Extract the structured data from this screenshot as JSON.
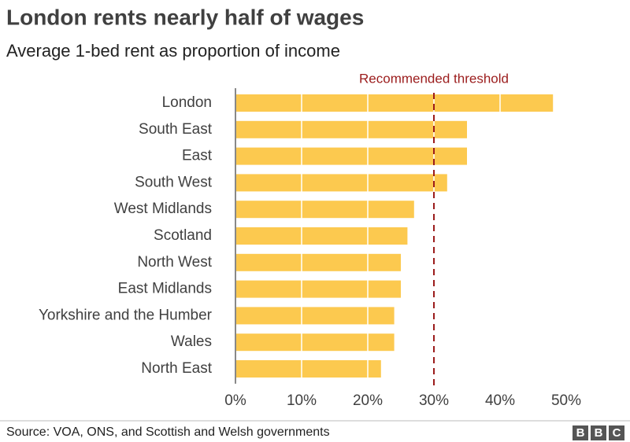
{
  "chart_data": {
    "type": "barh",
    "title": "London rents nearly half of wages",
    "subtitle": "Average 1-bed rent as proportion of income",
    "categories": [
      "London",
      "South East",
      "East",
      "South West",
      "West Midlands",
      "Scotland",
      "North West",
      "East Midlands",
      "Yorkshire and the Humber",
      "Wales",
      "North East"
    ],
    "values": [
      48,
      35,
      35,
      32,
      27,
      26,
      25,
      25,
      24,
      24,
      22
    ],
    "color": "#fcc94f",
    "xlim": [
      0,
      50
    ],
    "xticks": [
      {
        "value": 0,
        "label": "0%"
      },
      {
        "value": 10,
        "label": "10%"
      },
      {
        "value": 20,
        "label": "20%"
      },
      {
        "value": 30,
        "label": "30%"
      },
      {
        "value": 40,
        "label": "40%"
      },
      {
        "value": 50,
        "label": "50%"
      }
    ],
    "grid": true,
    "threshold": {
      "value": 30,
      "label": "Recommended threshold",
      "color": "#9b1c1c"
    },
    "source": "Source: VOA, ONS, and Scottish and Welsh governments",
    "logo": [
      "B",
      "B",
      "C"
    ]
  }
}
